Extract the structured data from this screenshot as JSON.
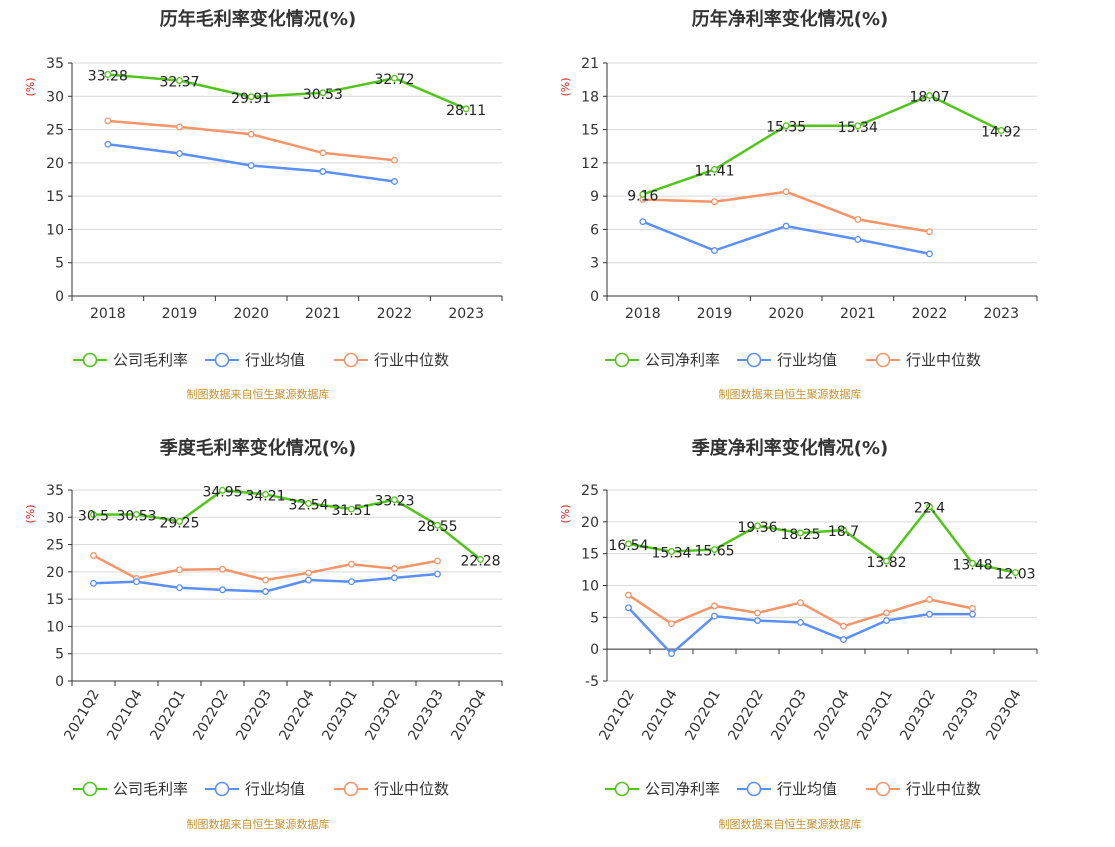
{
  "colors": {
    "company": "#52c41a",
    "avg": "#5b8ff9",
    "median": "#f6946a"
  },
  "charts": [
    {
      "id": "annual-gross",
      "title": "历年毛利率变化情况(%)",
      "unit": "(%)",
      "source": "制图数据来自恒生聚源数据库",
      "legend": [
        "公司毛利率",
        "行业均值",
        "行业中位数"
      ]
    },
    {
      "id": "annual-net",
      "title": "历年净利率变化情况(%)",
      "unit": "(%)",
      "source": "制图数据来自恒生聚源数据库",
      "legend": [
        "公司净利率",
        "行业均值",
        "行业中位数"
      ]
    },
    {
      "id": "quarter-gross",
      "title": "季度毛利率变化情况(%)",
      "unit": "(%)",
      "source": "制图数据来自恒生聚源数据库",
      "legend": [
        "公司毛利率",
        "行业均值",
        "行业中位数"
      ]
    },
    {
      "id": "quarter-net",
      "title": "季度净利率变化情况(%)",
      "unit": "(%)",
      "source": "制图数据来自恒生聚源数据库",
      "legend": [
        "公司净利率",
        "行业均值",
        "行业中位数"
      ]
    }
  ],
  "chart_data": [
    {
      "type": "line",
      "title": "历年毛利率变化情况(%)",
      "ylabel": "(%)",
      "categories": [
        "2018",
        "2019",
        "2020",
        "2021",
        "2022",
        "2023"
      ],
      "ylim": [
        0,
        35
      ],
      "yticks": [
        0,
        5,
        10,
        15,
        20,
        25,
        30,
        35
      ],
      "rotate_x": false,
      "grid": true,
      "legend_position": "bottom",
      "series": [
        {
          "name": "公司毛利率",
          "values": [
            33.28,
            32.37,
            29.91,
            30.53,
            32.72,
            28.11
          ],
          "labels": [
            "33.28",
            "32.37",
            "29.91",
            "30.53",
            "32.72",
            "28.11"
          ]
        },
        {
          "name": "行业均值",
          "values": [
            22.8,
            21.4,
            19.6,
            18.7,
            17.2,
            null
          ]
        },
        {
          "name": "行业中位数",
          "values": [
            26.3,
            25.4,
            24.3,
            21.5,
            20.4,
            null
          ]
        }
      ]
    },
    {
      "type": "line",
      "title": "历年净利率变化情况(%)",
      "ylabel": "(%)",
      "categories": [
        "2018",
        "2019",
        "2020",
        "2021",
        "2022",
        "2023"
      ],
      "ylim": [
        0,
        21
      ],
      "yticks": [
        0,
        3,
        6,
        9,
        12,
        15,
        18,
        21
      ],
      "rotate_x": false,
      "grid": true,
      "legend_position": "bottom",
      "series": [
        {
          "name": "公司净利率",
          "values": [
            9.16,
            11.41,
            15.35,
            15.34,
            18.07,
            14.92
          ],
          "labels": [
            "9.16",
            "11.41",
            "15.35",
            "15.34",
            "18.07",
            "14.92"
          ]
        },
        {
          "name": "行业均值",
          "values": [
            6.7,
            4.1,
            6.3,
            5.1,
            3.8,
            null
          ]
        },
        {
          "name": "行业中位数",
          "values": [
            8.7,
            8.5,
            9.4,
            6.9,
            5.8,
            null
          ]
        }
      ]
    },
    {
      "type": "line",
      "title": "季度毛利率变化情况(%)",
      "ylabel": "(%)",
      "categories": [
        "2021Q2",
        "2021Q4",
        "2022Q1",
        "2022Q2",
        "2022Q3",
        "2022Q4",
        "2023Q1",
        "2023Q2",
        "2023Q3",
        "2023Q4"
      ],
      "ylim": [
        0,
        35
      ],
      "yticks": [
        0,
        5,
        10,
        15,
        20,
        25,
        30,
        35
      ],
      "rotate_x": true,
      "grid": true,
      "legend_position": "bottom",
      "series": [
        {
          "name": "公司毛利率",
          "values": [
            30.5,
            30.53,
            29.25,
            34.95,
            34.21,
            32.54,
            31.51,
            33.23,
            28.55,
            22.28
          ],
          "labels": [
            "30.5",
            "30.53",
            "29.25",
            "34.95",
            "34.21",
            "32.54",
            "31.51",
            "33.23",
            "28.55",
            "22.28"
          ]
        },
        {
          "name": "行业均值",
          "values": [
            17.9,
            18.2,
            17.1,
            16.7,
            16.4,
            18.5,
            18.2,
            18.9,
            19.6,
            null
          ]
        },
        {
          "name": "行业中位数",
          "values": [
            23.0,
            18.8,
            20.4,
            20.5,
            18.5,
            19.8,
            21.4,
            20.6,
            22.0,
            null
          ]
        }
      ]
    },
    {
      "type": "line",
      "title": "季度净利率变化情况(%)",
      "ylabel": "(%)",
      "categories": [
        "2021Q2",
        "2021Q4",
        "2022Q1",
        "2022Q2",
        "2022Q3",
        "2022Q4",
        "2023Q1",
        "2023Q2",
        "2023Q3",
        "2023Q4"
      ],
      "ylim": [
        -5,
        25
      ],
      "yticks": [
        -5,
        0,
        5,
        10,
        15,
        20,
        25
      ],
      "rotate_x": true,
      "grid": true,
      "legend_position": "bottom",
      "series": [
        {
          "name": "公司净利率",
          "values": [
            16.54,
            15.34,
            15.65,
            19.36,
            18.25,
            18.7,
            13.82,
            22.4,
            13.48,
            12.03
          ],
          "labels": [
            "16.54",
            "15.34",
            "15.65",
            "19.36",
            "18.25",
            "18.7",
            "13.82",
            "22.4",
            "13.48",
            "12.03"
          ]
        },
        {
          "name": "行业均值",
          "values": [
            6.5,
            -0.7,
            5.2,
            4.5,
            4.2,
            1.5,
            4.5,
            5.5,
            5.5,
            null
          ]
        },
        {
          "name": "行业中位数",
          "values": [
            8.5,
            4.0,
            6.8,
            5.7,
            7.3,
            3.6,
            5.7,
            7.8,
            6.4,
            null
          ]
        }
      ]
    }
  ]
}
